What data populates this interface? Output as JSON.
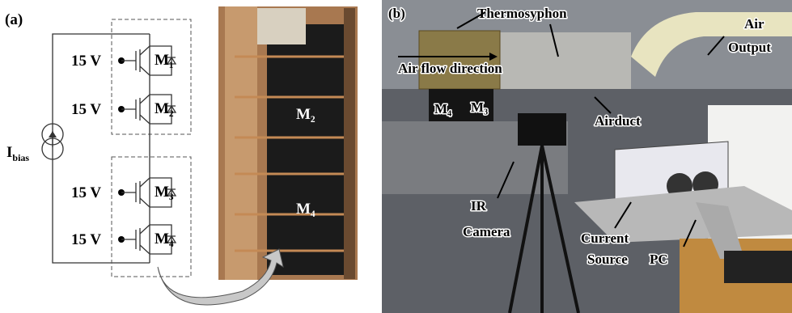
{
  "panel_a": {
    "label": "(a)",
    "gate_voltages": [
      "15 V",
      "15 V",
      "15 V",
      "15 V"
    ],
    "switches": [
      "M₁",
      "M₂",
      "M₃",
      "M₄"
    ],
    "current_source": {
      "main": "I",
      "sub": "bias"
    },
    "photo_labels": [
      "M₂",
      "M₄"
    ]
  },
  "panel_b": {
    "label": "(b)",
    "thermosyphon": "Thermosyphon",
    "air_flow": "Air flow direction",
    "air_output": [
      "Air",
      "Output"
    ],
    "modules": [
      "M₄",
      "M₃"
    ],
    "airduct": "Airduct",
    "ir_camera": [
      "IR",
      "Camera"
    ],
    "current_source": [
      "Current",
      "Source"
    ],
    "pc": "PC"
  }
}
